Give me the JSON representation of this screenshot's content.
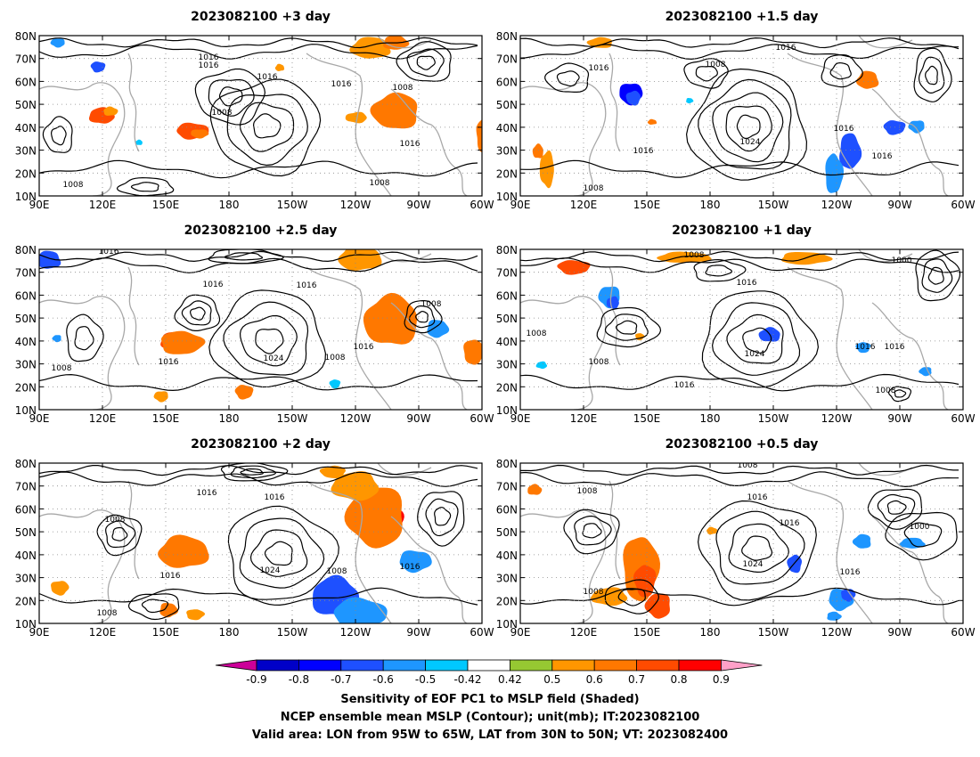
{
  "panels": [
    {
      "title": "2023082100 +3 day",
      "labels": [
        "1016",
        "1016",
        "1016",
        "1016",
        "1008",
        "1008",
        "1016",
        "1008",
        "1008"
      ]
    },
    {
      "title": "2023082100 +1.5 day",
      "labels": [
        "1016",
        "1016",
        "1008",
        "1024",
        "1016",
        "1016",
        "1016",
        "1008"
      ]
    },
    {
      "title": "2023082100 +2.5 day",
      "labels": [
        "1016",
        "1016",
        "1016",
        "1024",
        "1016",
        "1016",
        "1008",
        "1008",
        "1008"
      ]
    },
    {
      "title": "2023082100 +1 day",
      "labels": [
        "1008",
        "1000",
        "1016",
        "1008",
        "1008",
        "1024",
        "1016",
        "1016",
        "1016",
        "1008"
      ]
    },
    {
      "title": "2023082100 +2 day",
      "labels": [
        "1016",
        "1016",
        "1008",
        "1016",
        "1024",
        "1008",
        "1016",
        "1008"
      ]
    },
    {
      "title": "2023082100 +0.5 day",
      "labels": [
        "1008",
        "1008",
        "1016",
        "1016",
        "1024",
        "1000",
        "1016",
        "1008"
      ]
    }
  ],
  "lat_ticks": [
    "80N",
    "70N",
    "60N",
    "50N",
    "40N",
    "30N",
    "20N",
    "10N"
  ],
  "lon_ticks": [
    "90E",
    "120E",
    "150E",
    "180",
    "150W",
    "120W",
    "90W",
    "60W"
  ],
  "colorbar": {
    "ticks": [
      "-0.9",
      "-0.8",
      "-0.7",
      "-0.6",
      "-0.5",
      "-0.42",
      "0.42",
      "0.5",
      "0.6",
      "0.7",
      "0.8",
      "0.9"
    ],
    "colors": {
      "below": "#cc0099",
      "bins": [
        "#0000c8",
        "#0000ff",
        "#1e50ff",
        "#1e96ff",
        "#00c8ff",
        "#ffffff",
        "#96c832",
        "#ff9600",
        "#ff7800",
        "#ff4b00",
        "#ff0000"
      ],
      "above": "#ffa0c8"
    }
  },
  "captions": [
    "Sensitivity of EOF PC1 to MSLP field (Shaded)",
    "NCEP ensemble mean MSLP (Contour); unit(mb); IT:2023082100",
    "Valid area: LON from 95W to 65W, LAT from 30N to 50N; VT: 2023082400"
  ]
}
